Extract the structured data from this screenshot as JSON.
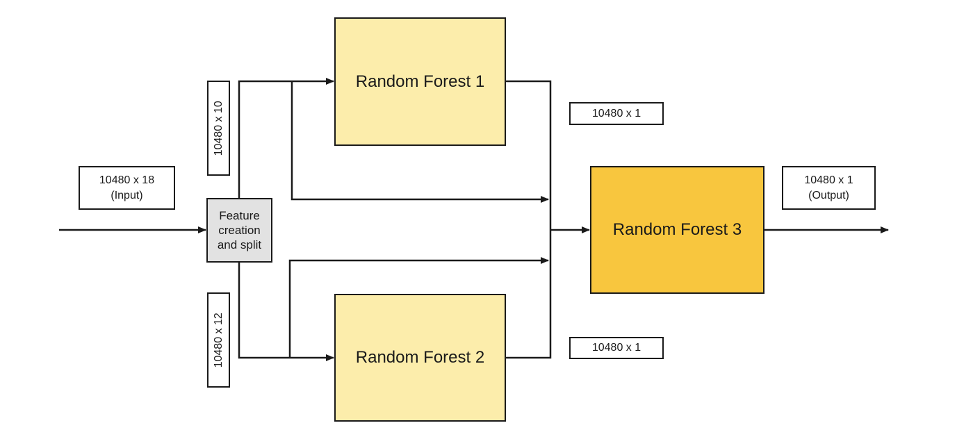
{
  "blocks": {
    "rf1": "Random Forest 1",
    "rf2": "Random Forest 2",
    "rf3": "Random Forest 3",
    "feature": "Feature\ncreation\nand split"
  },
  "labels": {
    "input": "10480 x 18\n(Input)",
    "split_top": "10480 x 10",
    "split_bottom": "10480 x 12",
    "rf1_out": "10480 x 1",
    "rf2_out": "10480 x 1",
    "output": "10480 x 1\n(Output)"
  },
  "colors": {
    "rf_light": "#fcedab",
    "rf_dark": "#f8c63e",
    "feature_box": "#e2e2e2",
    "line": "#1a1a1a"
  }
}
